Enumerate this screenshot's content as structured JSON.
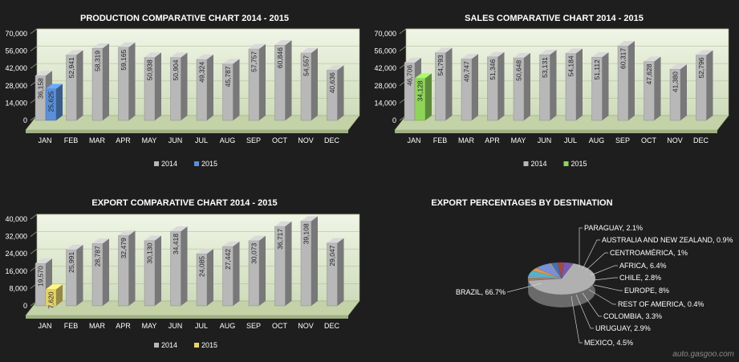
{
  "chart_data": [
    {
      "type": "bar",
      "title": "PRODUCTION COMPARATIVE CHART 2014 - 2015",
      "categories": [
        "JAN",
        "FEB",
        "MAR",
        "APR",
        "MAY",
        "JUN",
        "JUL",
        "AUG",
        "SEP",
        "OCT",
        "NOV",
        "DEC"
      ],
      "ylim": [
        0,
        70000
      ],
      "yticks": [
        "0",
        "14,000",
        "28,000",
        "42,000",
        "56,000",
        "70,000"
      ],
      "yticks_values": [
        0,
        14000,
        28000,
        42000,
        56000,
        70000
      ],
      "series": [
        {
          "name": "2014",
          "color": "#b8b8b8",
          "values": [
            36158,
            52941,
            58319,
            59165,
            50938,
            50904,
            49324,
            45787,
            57757,
            60846,
            54557,
            40636
          ],
          "labels": [
            "36,158",
            "52,941",
            "58,319",
            "59,165",
            "50,938",
            "50,904",
            "49,324",
            "45,787",
            "57,757",
            "60,846",
            "54,557",
            "40,636"
          ]
        },
        {
          "name": "2015",
          "color": "#5b8fd8",
          "values": [
            25625,
            null,
            null,
            null,
            null,
            null,
            null,
            null,
            null,
            null,
            null,
            null
          ],
          "labels": [
            "25,625",
            "",
            "",
            "",
            "",
            "",
            "",
            "",
            "",
            "",
            "",
            ""
          ]
        }
      ],
      "legend": [
        "2014",
        "2015"
      ],
      "grid": true
    },
    {
      "type": "bar",
      "title": "SALES COMPARATIVE CHART 2014 - 2015",
      "categories": [
        "JAN",
        "FEB",
        "MAR",
        "APR",
        "MAY",
        "JUN",
        "JUL",
        "AUG",
        "SEP",
        "OCT",
        "NOV",
        "DEC"
      ],
      "ylim": [
        0,
        70000
      ],
      "yticks": [
        "0",
        "14,000",
        "28,000",
        "42,000",
        "56,000",
        "70,000"
      ],
      "yticks_values": [
        0,
        14000,
        28000,
        42000,
        56000,
        70000
      ],
      "series": [
        {
          "name": "2014",
          "color": "#b8b8b8",
          "values": [
            46706,
            54793,
            49747,
            51346,
            50648,
            53131,
            54184,
            51112,
            60317,
            47628,
            41380,
            52796
          ],
          "labels": [
            "46,706",
            "54,793",
            "49,747",
            "51,346",
            "50,648",
            "53,131",
            "54,184",
            "51,112",
            "60,317",
            "47,628",
            "41,380",
            "52,796"
          ]
        },
        {
          "name": "2015",
          "color": "#8fd45a",
          "values": [
            34128,
            null,
            null,
            null,
            null,
            null,
            null,
            null,
            null,
            null,
            null,
            null
          ],
          "labels": [
            "34,128",
            "",
            "",
            "",
            "",
            "",
            "",
            "",
            "",
            "",
            "",
            ""
          ]
        }
      ],
      "legend": [
        "2014",
        "2015"
      ],
      "grid": true
    },
    {
      "type": "bar",
      "title": "EXPORT COMPARATIVE CHART 2014 - 2015",
      "categories": [
        "JAN",
        "FEB",
        "MAR",
        "APR",
        "MAY",
        "JUN",
        "JUL",
        "AUG",
        "SEP",
        "OCT",
        "NOV",
        "DEC"
      ],
      "ylim": [
        0,
        40000
      ],
      "yticks": [
        "0",
        "8,000",
        "16,000",
        "24,000",
        "32,000",
        "40,000"
      ],
      "yticks_values": [
        0,
        8000,
        16000,
        24000,
        32000,
        40000
      ],
      "series": [
        {
          "name": "2014",
          "color": "#b8b8b8",
          "values": [
            19570,
            25991,
            28787,
            32479,
            30130,
            34418,
            24085,
            27442,
            30073,
            36717,
            39108,
            29047
          ],
          "labels": [
            "19,570",
            "25,991",
            "28,787",
            "32,479",
            "30,130",
            "34,418",
            "24,085",
            "27,442",
            "30,073",
            "36,717",
            "39,108",
            "29,047"
          ]
        },
        {
          "name": "2015",
          "color": "#e6d26a",
          "values": [
            7620,
            null,
            null,
            null,
            null,
            null,
            null,
            null,
            null,
            null,
            null,
            null
          ],
          "labels": [
            "7,620",
            "",
            "",
            "",
            "",
            "",
            "",
            "",
            "",
            "",
            "",
            ""
          ]
        }
      ],
      "legend": [
        "2014",
        "2015"
      ],
      "grid": true
    },
    {
      "type": "pie",
      "title": "EXPORT PERCENTAGES BY DESTINATION",
      "slices": [
        {
          "label": "BRAZIL, 66.7%",
          "value": 66.7,
          "color": "#b0b0b0"
        },
        {
          "label": "PARAGUAY, 2.1%",
          "value": 2.1,
          "color": "#c76b6b"
        },
        {
          "label": "AUSTRALIA AND NEW ZEALAND, 0.9%",
          "value": 0.9,
          "color": "#6aa86a"
        },
        {
          "label": "CENTROAMÉRICA, 1%",
          "value": 1.0,
          "color": "#c9a6e0"
        },
        {
          "label": "AFRICA, 6.4%",
          "value": 6.4,
          "color": "#5ab0c8"
        },
        {
          "label": "CHILE, 2.8%",
          "value": 2.8,
          "color": "#e89a3c"
        },
        {
          "label": "EUROPE, 8%",
          "value": 8.0,
          "color": "#7b8fd6"
        },
        {
          "label": "REST OF AMERICA, 0.4%",
          "value": 0.4,
          "color": "#d4d46a"
        },
        {
          "label": "COLOMBIA, 3.3%",
          "value": 3.3,
          "color": "#4a6fb0"
        },
        {
          "label": "URUGUAY, 2.9%",
          "value": 2.9,
          "color": "#a04a4a"
        },
        {
          "label": "MEXICO, 4.5%",
          "value": 4.5,
          "color": "#7a5ab0"
        }
      ]
    }
  ],
  "watermark": "auto.gasgoo.com"
}
